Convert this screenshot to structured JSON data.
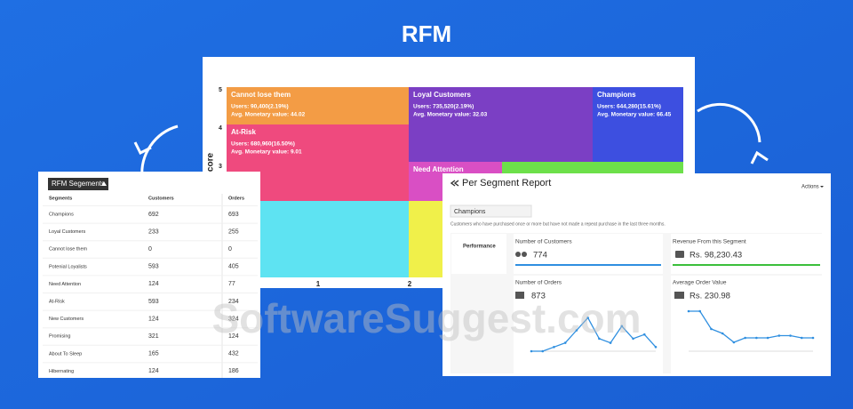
{
  "title": "RFM",
  "rfm_map": {
    "y_axis_label": "y Score",
    "y_ticks": [
      "5",
      "4",
      "3"
    ],
    "x_ticks": [
      "1",
      "2"
    ],
    "cells": [
      {
        "label": "Cannot lose them",
        "users": "Users: 90,400(2.19%)",
        "monetary": "Avg. Monetary value: 44.02"
      },
      {
        "label": "Loyal Customers",
        "users": "Users: 735,520(2.19%)",
        "monetary": "Avg. Monetary value: 32.03"
      },
      {
        "label": "Champions",
        "users": "Users: 644,280(15.61%)",
        "monetary": "Avg. Monetary value: 66.45"
      },
      {
        "label": "At-Risk",
        "users": "Users: 680,960(16.50%)",
        "monetary": "Avg. Monetary value: 9.01"
      },
      {
        "label": "Need Attention"
      }
    ]
  },
  "segments_table": {
    "title": "RFM Segements",
    "columns": [
      "Segments",
      "Customers",
      "Orders"
    ],
    "rows": [
      [
        "Champions",
        692,
        693
      ],
      [
        "Loyal Customers",
        233,
        255
      ],
      [
        "Cannot lose them",
        0,
        0
      ],
      [
        "Potenial Loyalists",
        593,
        405
      ],
      [
        "Need Attention",
        124,
        77
      ],
      [
        "At-Risk",
        593,
        234
      ],
      [
        "New Customers",
        124,
        324
      ],
      [
        "Promising",
        321,
        124
      ],
      [
        "About To Sleep",
        165,
        432
      ],
      [
        "Hibernating",
        124,
        186
      ]
    ]
  },
  "segment_report": {
    "title": "Per Segment Report",
    "actions": "Actions",
    "segment": "Champions",
    "description": "Customers who have purchased once or more but have not made a repeat purchase in the last three months.",
    "performance": "Performance",
    "metrics": [
      {
        "label": "Number of Customers",
        "value": 774
      },
      {
        "label": "Revenue From this Segment",
        "value": "Rs. 98,230.43"
      },
      {
        "label": "Number of Orders",
        "value": 873
      },
      {
        "label": "Average Order Value",
        "value": "Rs. 230.98"
      }
    ],
    "orders_trend": {
      "values": [
        0,
        0,
        1,
        2,
        5,
        8,
        3,
        2,
        6,
        3,
        4,
        1
      ],
      "ylim": [
        0,
        10
      ]
    },
    "aov_trend": {
      "values": [
        9,
        9,
        5,
        4,
        2,
        3,
        3,
        3,
        3.5,
        3.5,
        3,
        3
      ],
      "ylim": [
        0,
        10
      ]
    }
  },
  "watermark": "SoftwareSuggest.com"
}
